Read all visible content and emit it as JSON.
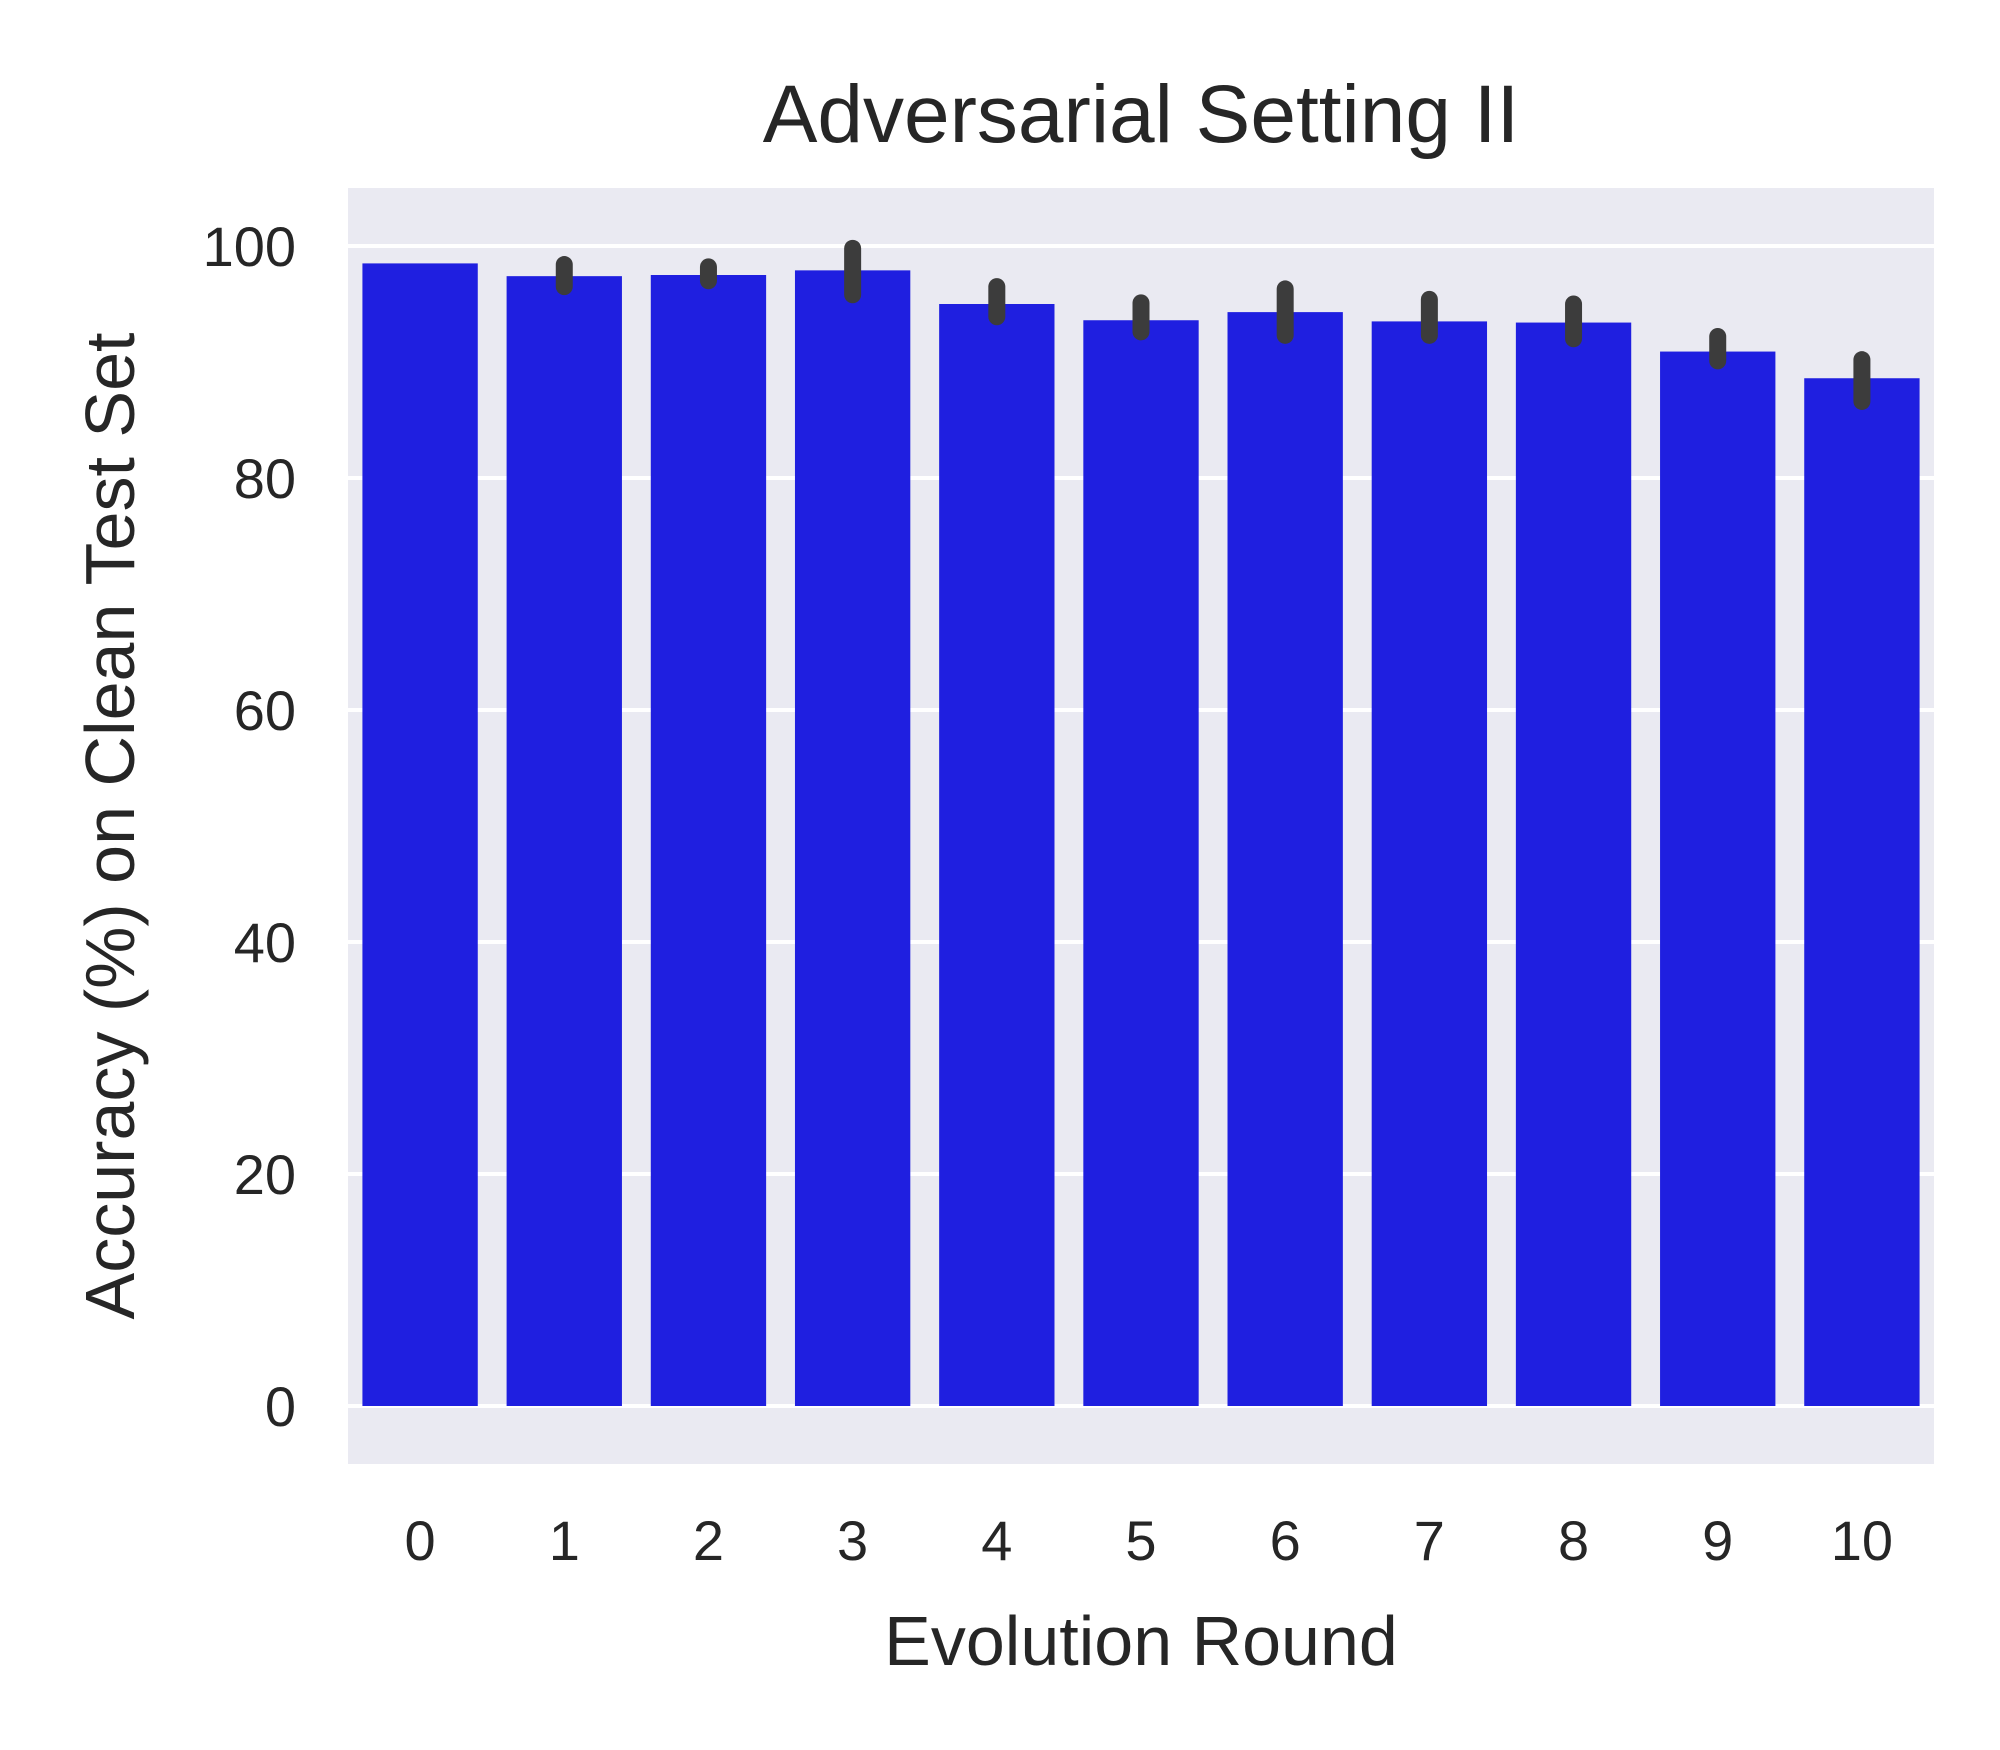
{
  "chart_data": {
    "type": "bar",
    "title": "Adversarial Setting II",
    "xlabel": "Evolution Round",
    "ylabel": "Accuracy (%) on Clean Test Set",
    "categories": [
      "0",
      "1",
      "2",
      "3",
      "4",
      "5",
      "6",
      "7",
      "8",
      "9",
      "10"
    ],
    "values": [
      98.5,
      97.4,
      97.5,
      97.9,
      95.0,
      93.6,
      94.3,
      93.5,
      93.4,
      90.9,
      88.6
    ],
    "error_low": [
      98.5,
      96.5,
      97.0,
      95.8,
      93.9,
      92.6,
      92.3,
      92.3,
      92.0,
      90.1,
      86.6
    ],
    "error_high": [
      98.5,
      98.4,
      98.2,
      99.8,
      96.5,
      95.1,
      96.3,
      95.4,
      95.0,
      92.2,
      90.2
    ],
    "ylim": [
      -5,
      105
    ],
    "yticks": [
      0,
      20,
      40,
      60,
      80,
      100
    ],
    "grid": true,
    "colors": {
      "bar": "#1f1fe0",
      "error_bar": "#3c3c3c",
      "plot_background": "#eaeaf2",
      "grid": "#ffffff"
    }
  }
}
